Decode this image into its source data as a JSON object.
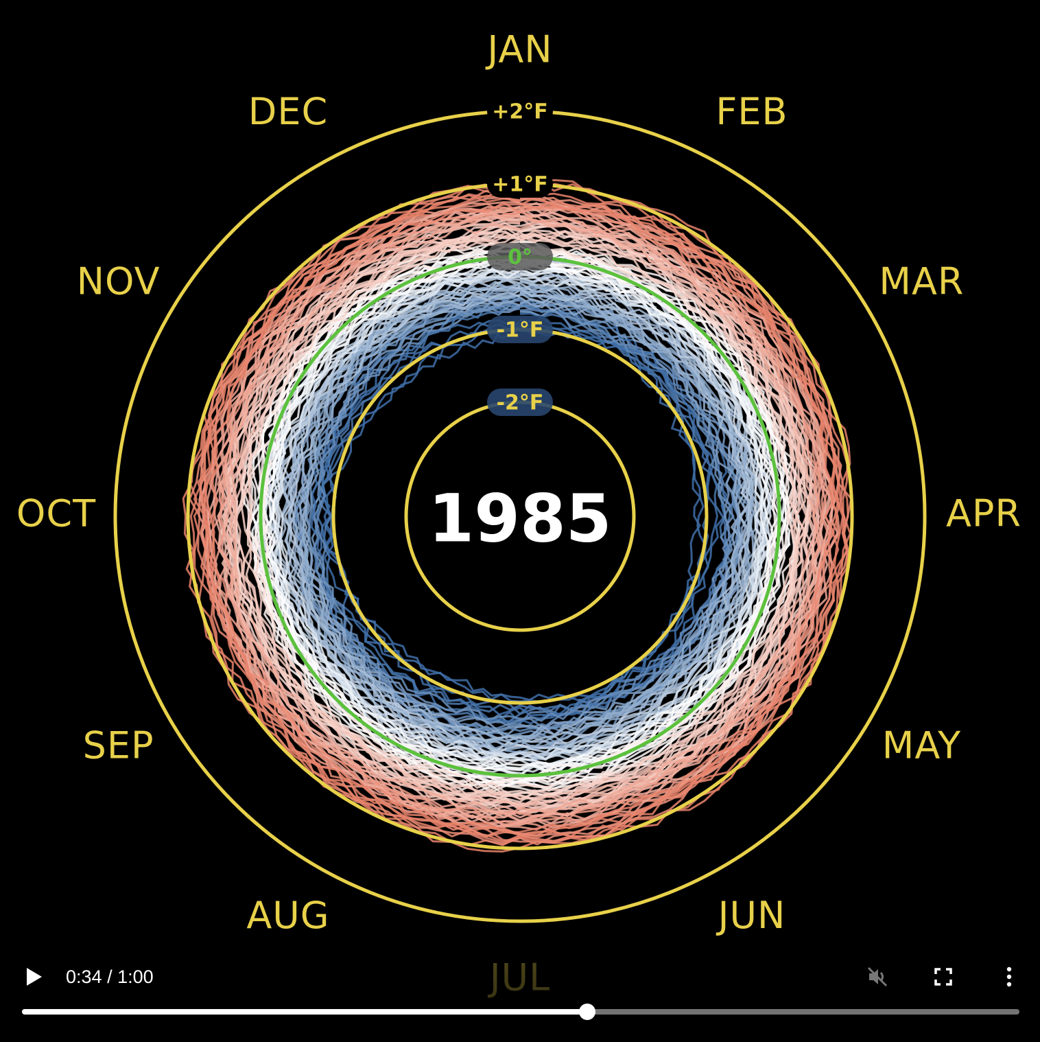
{
  "video": {
    "year": "1985",
    "months": [
      "JAN",
      "FEB",
      "MAR",
      "APR",
      "MAY",
      "JUN",
      "JUL",
      "AUG",
      "SEP",
      "OCT",
      "NOV",
      "DEC"
    ],
    "rings": [
      {
        "label": "+2°F",
        "value": 2
      },
      {
        "label": "+1°F",
        "value": 1
      },
      {
        "label": "0°",
        "value": 0
      },
      {
        "label": "-1°F",
        "value": -1
      },
      {
        "label": "-2°F",
        "value": -2
      }
    ],
    "colors": {
      "ring": "#e8d14a",
      "zero_ring": "#5cc13d",
      "warm": "#e8826a",
      "neutral": "#ffffff",
      "cool": "#3f6fa8"
    }
  },
  "controls": {
    "current_time": "0:34",
    "separator": " / ",
    "duration": "1:00",
    "progress_fraction": 0.567,
    "play_icon": "play-icon",
    "mute_icon": "muted-speaker-icon",
    "fullscreen_icon": "fullscreen-icon",
    "more_icon": "more-vertical-icon"
  }
}
